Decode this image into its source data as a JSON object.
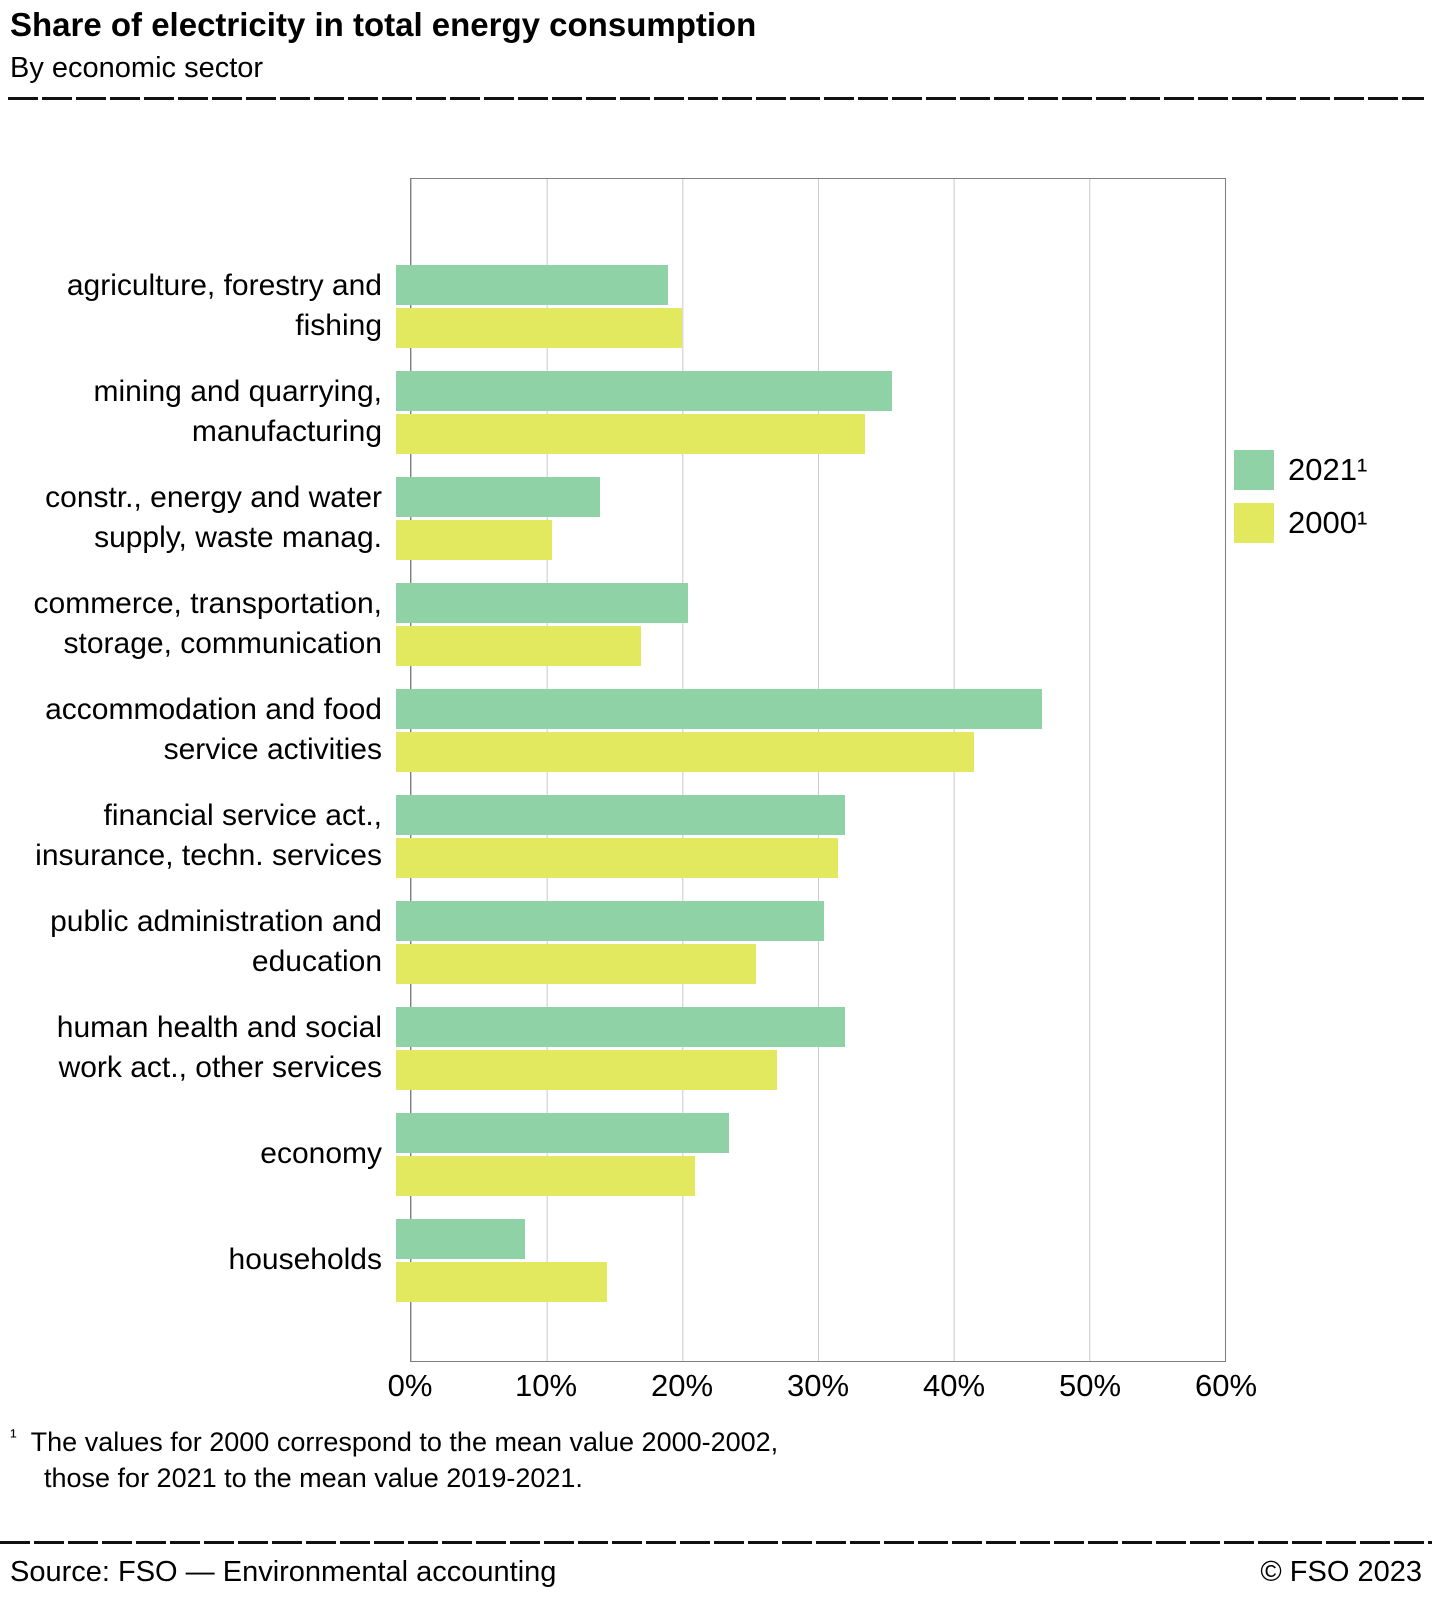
{
  "header": {
    "title": "Share of electricity in total energy consumption",
    "subtitle": "By economic sector"
  },
  "legend": {
    "items": [
      {
        "label": "2021¹",
        "color": "#8ed2a5"
      },
      {
        "label": "2000¹",
        "color": "#e3e95f"
      }
    ]
  },
  "chart_data": {
    "type": "bar",
    "orientation": "horizontal",
    "categories": [
      "agriculture, forestry and\nfishing",
      "mining and quarrying,\nmanufacturing",
      "constr., energy and water\nsupply, waste manag.",
      "commerce, transportation,\nstorage, communication",
      "accommodation and food\nservice activities",
      "financial service act.,\ninsurance, techn. services",
      "public administration and\neducation",
      "human health and social\nwork act., other services",
      "economy",
      "households"
    ],
    "series": [
      {
        "name": "2021¹",
        "color": "#8ed2a5",
        "values": [
          20,
          36.5,
          15,
          21.5,
          47.5,
          33,
          31.5,
          33,
          24.5,
          9.5
        ]
      },
      {
        "name": "2000¹",
        "color": "#e3e95f",
        "values": [
          21,
          34.5,
          11.5,
          18,
          42.5,
          32.5,
          26.5,
          28,
          22,
          15.5
        ]
      }
    ],
    "xlim": [
      0,
      60
    ],
    "x_ticks": [
      "0%",
      "10%",
      "20%",
      "30%",
      "40%",
      "50%",
      "60%"
    ],
    "grid": "vertical",
    "legend_position": "right",
    "title": "Share of electricity in total energy consumption",
    "subtitle": "By economic sector",
    "xlabel": "",
    "ylabel": ""
  },
  "footnote": {
    "marker": "¹",
    "lines": [
      "The values for 2000 correspond to the mean value 2000-2002,",
      "those for 2021 to the mean value 2019-2021."
    ]
  },
  "footer": {
    "source": "Source: FSO — Environmental accounting",
    "copyright": "© FSO 2023"
  }
}
